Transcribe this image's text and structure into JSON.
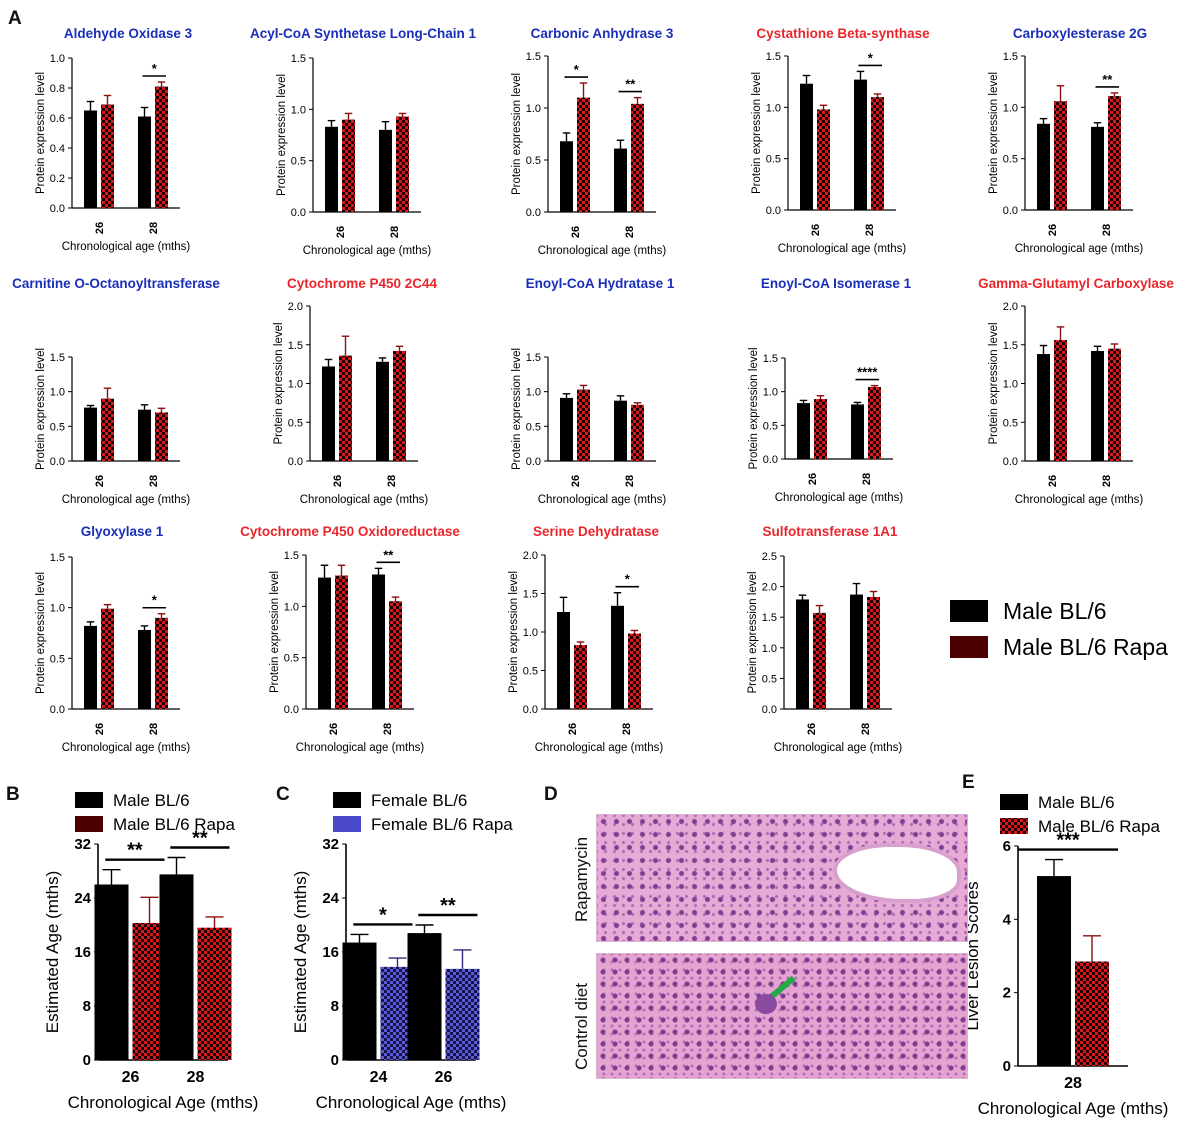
{
  "panel_letters": [
    "A",
    "B",
    "C",
    "D",
    "E"
  ],
  "shared_labels": {
    "ylabel": "Protein expression level",
    "xlabel": "Chronological age (mths)",
    "categories": [
      "26",
      "28"
    ]
  },
  "legend_A": {
    "items": [
      {
        "label": "Male BL/6",
        "color": "#000000",
        "pattern": "solid"
      },
      {
        "label": "Male BL/6 Rapa",
        "color": "#4a0000",
        "pattern": "solid"
      }
    ]
  },
  "colors": {
    "blue_title": "#1a2fb8",
    "red_title": "#e8262b",
    "black_bar": "#000000",
    "red_check": "#d7191c",
    "blue_check": "#4848c8"
  },
  "chart_data": [
    {
      "id": "A1",
      "type": "bar",
      "title": "Aldehyde  Oxidase 3",
      "title_color": "blue",
      "ylabel": "Protein expression level",
      "xlabel": "Chronological age (mths)",
      "categories": [
        "26",
        "28"
      ],
      "ylim": [
        0,
        1.0
      ],
      "yticks": [
        "0.0",
        "0.2",
        "0.4",
        "0.6",
        "0.8",
        "1.0"
      ],
      "series": [
        {
          "name": "Male BL/6",
          "values": [
            0.65,
            0.61
          ],
          "errors": [
            0.06,
            0.06
          ]
        },
        {
          "name": "Male BL/6 Rapa",
          "values": [
            0.69,
            0.81
          ],
          "errors": [
            0.06,
            0.03
          ]
        }
      ],
      "annotations": [
        {
          "category": 1,
          "text": "*"
        }
      ]
    },
    {
      "id": "A2",
      "type": "bar",
      "title": "Acyl-CoA Synthetase Long-Chain 1",
      "title_color": "blue",
      "ylabel": "Protein expression level",
      "xlabel": "Chronological age (mths)",
      "categories": [
        "26",
        "28"
      ],
      "ylim": [
        0,
        1.5
      ],
      "yticks": [
        "0.0",
        "0.5",
        "1.0",
        "1.5"
      ],
      "series": [
        {
          "name": "Male BL/6",
          "values": [
            0.83,
            0.8
          ],
          "errors": [
            0.06,
            0.08
          ]
        },
        {
          "name": "Male BL/6 Rapa",
          "values": [
            0.9,
            0.93
          ],
          "errors": [
            0.06,
            0.03
          ]
        }
      ],
      "annotations": []
    },
    {
      "id": "A3",
      "type": "bar",
      "title": "Carbonic  Anhydrase 3",
      "title_color": "blue",
      "ylabel": "Protein expression level",
      "xlabel": "Chronological age (mths)",
      "categories": [
        "26",
        "28"
      ],
      "ylim": [
        0,
        1.5
      ],
      "yticks": [
        "0.0",
        "0.5",
        "1.0",
        "1.5"
      ],
      "series": [
        {
          "name": "Male BL/6",
          "values": [
            0.68,
            0.61
          ],
          "errors": [
            0.08,
            0.08
          ]
        },
        {
          "name": "Male BL/6 Rapa",
          "values": [
            1.1,
            1.04
          ],
          "errors": [
            0.14,
            0.06
          ]
        }
      ],
      "annotations": [
        {
          "category": 0,
          "text": "*"
        },
        {
          "category": 1,
          "text": "**"
        }
      ]
    },
    {
      "id": "A4",
      "type": "bar",
      "title": "Cystathione Beta-synthase",
      "title_color": "red",
      "ylabel": "Protein expression level",
      "xlabel": "Chronological age (mths)",
      "categories": [
        "26",
        "28"
      ],
      "ylim": [
        0,
        1.5
      ],
      "yticks": [
        "0.0",
        "0.5",
        "1.0",
        "1.5"
      ],
      "series": [
        {
          "name": "Male BL/6",
          "values": [
            1.23,
            1.27
          ],
          "errors": [
            0.08,
            0.08
          ]
        },
        {
          "name": "Male BL/6 Rapa",
          "values": [
            0.98,
            1.1
          ],
          "errors": [
            0.04,
            0.03
          ]
        }
      ],
      "annotations": [
        {
          "category": 1,
          "text": "*"
        }
      ]
    },
    {
      "id": "A5",
      "type": "bar",
      "title": "Carboxylesterase 2G",
      "title_color": "blue",
      "ylabel": "Protein expression level",
      "xlabel": "Chronological age (mths)",
      "categories": [
        "26",
        "28"
      ],
      "ylim": [
        0,
        1.5
      ],
      "yticks": [
        "0.0",
        "0.5",
        "1.0",
        "1.5"
      ],
      "series": [
        {
          "name": "Male BL/6",
          "values": [
            0.84,
            0.81
          ],
          "errors": [
            0.05,
            0.04
          ]
        },
        {
          "name": "Male BL/6 Rapa",
          "values": [
            1.06,
            1.11
          ],
          "errors": [
            0.15,
            0.03
          ]
        }
      ],
      "annotations": [
        {
          "category": 1,
          "text": "**"
        }
      ]
    },
    {
      "id": "A6",
      "type": "bar",
      "title": "Carnitine O-Octanoyltransferase",
      "title_color": "blue",
      "ylabel": "Protein expression level",
      "xlabel": "Chronological age (mths)",
      "categories": [
        "26",
        "28"
      ],
      "ylim": [
        0,
        1.5
      ],
      "yticks": [
        "0.0",
        "0.5",
        "1.0",
        "1.5"
      ],
      "series": [
        {
          "name": "Male BL/6",
          "values": [
            0.77,
            0.74
          ],
          "errors": [
            0.03,
            0.07
          ]
        },
        {
          "name": "Male BL/6 Rapa",
          "values": [
            0.9,
            0.7
          ],
          "errors": [
            0.15,
            0.06
          ]
        }
      ],
      "annotations": []
    },
    {
      "id": "A7",
      "type": "bar",
      "title": "Cytochrome P450 2C44",
      "title_color": "red",
      "ylabel": "Protein expression level",
      "xlabel": "Chronological age (mths)",
      "categories": [
        "26",
        "28"
      ],
      "ylim": [
        0,
        2.0
      ],
      "yticks": [
        "0.0",
        "0.5",
        "1.0",
        "1.5",
        "2.0"
      ],
      "series": [
        {
          "name": "Male BL/6",
          "values": [
            1.22,
            1.28
          ],
          "errors": [
            0.09,
            0.05
          ]
        },
        {
          "name": "Male BL/6 Rapa",
          "values": [
            1.36,
            1.42
          ],
          "errors": [
            0.25,
            0.06
          ]
        }
      ],
      "annotations": []
    },
    {
      "id": "A8",
      "type": "bar",
      "title": "Enoyl-CoA Hydratase 1",
      "title_color": "blue",
      "ylabel": "Protein expression level",
      "xlabel": "Chronological age (mths)",
      "categories": [
        "26",
        "28"
      ],
      "ylim": [
        0,
        1.5
      ],
      "yticks": [
        "0.0",
        "0.5",
        "1.0",
        "1.5"
      ],
      "series": [
        {
          "name": "Male BL/6",
          "values": [
            0.91,
            0.87
          ],
          "errors": [
            0.06,
            0.07
          ]
        },
        {
          "name": "Male BL/6 Rapa",
          "values": [
            1.03,
            0.81
          ],
          "errors": [
            0.06,
            0.03
          ]
        }
      ],
      "annotations": []
    },
    {
      "id": "A9",
      "type": "bar",
      "title": "Enoyl-CoA Isomerase 1",
      "title_color": "blue",
      "ylabel": "Protein expression level",
      "xlabel": "Chronological age (mths)",
      "categories": [
        "26",
        "28"
      ],
      "ylim": [
        0,
        1.5
      ],
      "yticks": [
        "0.0",
        "0.5",
        "1.0",
        "1.5"
      ],
      "series": [
        {
          "name": "Male BL/6",
          "values": [
            0.83,
            0.81
          ],
          "errors": [
            0.04,
            0.03
          ]
        },
        {
          "name": "Male BL/6 Rapa",
          "values": [
            0.89,
            1.07
          ],
          "errors": [
            0.05,
            0.02
          ]
        }
      ],
      "annotations": [
        {
          "category": 1,
          "text": "****"
        }
      ]
    },
    {
      "id": "A10",
      "type": "bar",
      "title": "Gamma-Glutamyl Carboxylase",
      "title_color": "red",
      "ylabel": "Protein expression level",
      "xlabel": "Chronological age (mths)",
      "categories": [
        "26",
        "28"
      ],
      "ylim": [
        0,
        2.0
      ],
      "yticks": [
        "0.0",
        "0.5",
        "1.0",
        "1.5",
        "2.0"
      ],
      "series": [
        {
          "name": "Male BL/6",
          "values": [
            1.38,
            1.42
          ],
          "errors": [
            0.11,
            0.06
          ]
        },
        {
          "name": "Male BL/6 Rapa",
          "values": [
            1.56,
            1.45
          ],
          "errors": [
            0.17,
            0.06
          ]
        }
      ],
      "annotations": []
    },
    {
      "id": "A11",
      "type": "bar",
      "title": "Glyoxylase 1",
      "title_color": "blue",
      "ylabel": "Protein expression level",
      "xlabel": "Chronological age (mths)",
      "categories": [
        "26",
        "28"
      ],
      "ylim": [
        0,
        1.5
      ],
      "yticks": [
        "0.0",
        "0.5",
        "1.0",
        "1.5"
      ],
      "series": [
        {
          "name": "Male BL/6",
          "values": [
            0.82,
            0.78
          ],
          "errors": [
            0.04,
            0.04
          ]
        },
        {
          "name": "Male BL/6 Rapa",
          "values": [
            0.99,
            0.9
          ],
          "errors": [
            0.04,
            0.04
          ]
        }
      ],
      "annotations": [
        {
          "category": 1,
          "text": "*"
        }
      ]
    },
    {
      "id": "A12",
      "type": "bar",
      "title": "Cytochrome P450 Oxidoreductase",
      "title_color": "red",
      "ylabel": "Protein expression level",
      "xlabel": "Chronological age (mths)",
      "categories": [
        "26",
        "28"
      ],
      "ylim": [
        0,
        1.5
      ],
      "yticks": [
        "0.0",
        "0.5",
        "1.0",
        "1.5"
      ],
      "series": [
        {
          "name": "Male BL/6",
          "values": [
            1.28,
            1.31
          ],
          "errors": [
            0.12,
            0.06
          ]
        },
        {
          "name": "Male BL/6 Rapa",
          "values": [
            1.3,
            1.05
          ],
          "errors": [
            0.1,
            0.04
          ]
        }
      ],
      "annotations": [
        {
          "category": 1,
          "text": "**"
        }
      ]
    },
    {
      "id": "A13",
      "type": "bar",
      "title": "Serine  Dehydratase",
      "title_color": "red",
      "ylabel": "Protein expression level",
      "xlabel": "Chronological age (mths)",
      "categories": [
        "26",
        "28"
      ],
      "ylim": [
        0,
        2.0
      ],
      "yticks": [
        "0.0",
        "0.5",
        "1.0",
        "1.5",
        "2.0"
      ],
      "series": [
        {
          "name": "Male BL/6",
          "values": [
            1.26,
            1.34
          ],
          "errors": [
            0.19,
            0.17
          ]
        },
        {
          "name": "Male BL/6 Rapa",
          "values": [
            0.83,
            0.98
          ],
          "errors": [
            0.04,
            0.04
          ]
        }
      ],
      "annotations": [
        {
          "category": 1,
          "text": "*"
        }
      ]
    },
    {
      "id": "A14",
      "type": "bar",
      "title": "Sulfotransferase 1A1",
      "title_color": "red",
      "ylabel": "Protein expression level",
      "xlabel": "Chronological age (mths)",
      "categories": [
        "26",
        "28"
      ],
      "ylim": [
        0,
        2.5
      ],
      "yticks": [
        "0.0",
        "0.5",
        "1.0",
        "1.5",
        "2.0",
        "2.5"
      ],
      "series": [
        {
          "name": "Male BL/6",
          "values": [
            1.79,
            1.87
          ],
          "errors": [
            0.07,
            0.18
          ]
        },
        {
          "name": "Male BL/6 Rapa",
          "values": [
            1.57,
            1.83
          ],
          "errors": [
            0.12,
            0.09
          ]
        }
      ],
      "annotations": []
    },
    {
      "id": "B",
      "type": "bar",
      "title": "",
      "ylabel": "Estimated Age (mths)",
      "xlabel": "Chronological  Age (mths)",
      "categories": [
        "26",
        "28"
      ],
      "ylim": [
        0,
        32
      ],
      "yticks": [
        "0",
        "8",
        "16",
        "24",
        "32"
      ],
      "series": [
        {
          "name": "Male BL/6",
          "values": [
            26,
            27.5
          ],
          "errors": [
            2.2,
            2.5
          ],
          "legend_color": "#000000"
        },
        {
          "name": "Male BL/6 Rapa",
          "values": [
            20.3,
            19.6
          ],
          "errors": [
            3.8,
            1.6
          ],
          "legend_color": "#4a0000"
        }
      ],
      "annotations": [
        {
          "category": 0,
          "text": "**"
        },
        {
          "category": 1,
          "text": "**"
        }
      ]
    },
    {
      "id": "C",
      "type": "bar",
      "title": "",
      "ylabel": "Estimated Age (mths)",
      "xlabel": "Chronological  Age (mths)",
      "categories": [
        "24",
        "26"
      ],
      "ylim": [
        0,
        32
      ],
      "yticks": [
        "0",
        "8",
        "16",
        "24",
        "32"
      ],
      "series": [
        {
          "name": "Female BL/6",
          "values": [
            17.4,
            18.8
          ],
          "errors": [
            1.2,
            1.2
          ],
          "legend_color": "#000000"
        },
        {
          "name": "Female BL/6 Rapa",
          "values": [
            13.8,
            13.5
          ],
          "errors": [
            1.3,
            2.8
          ],
          "legend_color": "#4848c8"
        }
      ],
      "annotations": [
        {
          "category": 0,
          "text": "*"
        },
        {
          "category": 1,
          "text": "**"
        }
      ]
    },
    {
      "id": "E",
      "type": "bar",
      "title": "",
      "ylabel": "Liver Lesion Scores",
      "xlabel": "Chronological  Age (mths)",
      "categories": [
        "28"
      ],
      "ylim": [
        0,
        6
      ],
      "yticks": [
        "0",
        "2",
        "4",
        "6"
      ],
      "series": [
        {
          "name": "Male BL/6",
          "values": [
            5.18
          ],
          "errors": [
            0.45
          ],
          "legend_color": "#000000"
        },
        {
          "name": "Male BL/6 Rapa",
          "values": [
            2.85
          ],
          "errors": [
            0.7
          ],
          "legend_color": "#d7191c"
        }
      ],
      "annotations": [
        {
          "category": 0,
          "text": "***"
        }
      ]
    }
  ],
  "histology": {
    "labels": [
      "Rapamycin",
      "Control diet"
    ]
  }
}
